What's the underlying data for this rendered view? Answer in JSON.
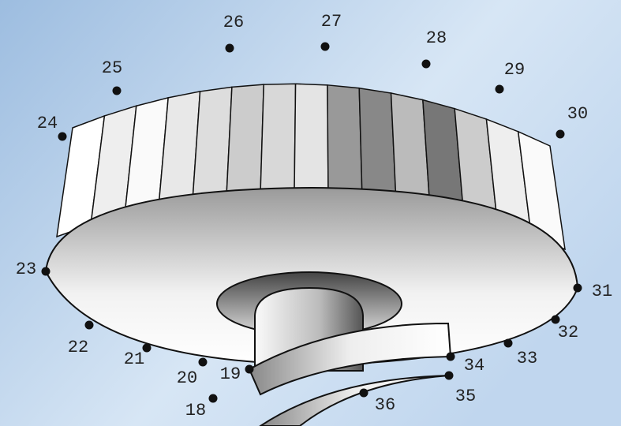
{
  "dots": [
    "18",
    "19",
    "20",
    "21",
    "22",
    "23",
    "24",
    "25",
    "26",
    "27",
    "28",
    "29",
    "30",
    "31",
    "32",
    "33",
    "34",
    "35",
    "36"
  ]
}
